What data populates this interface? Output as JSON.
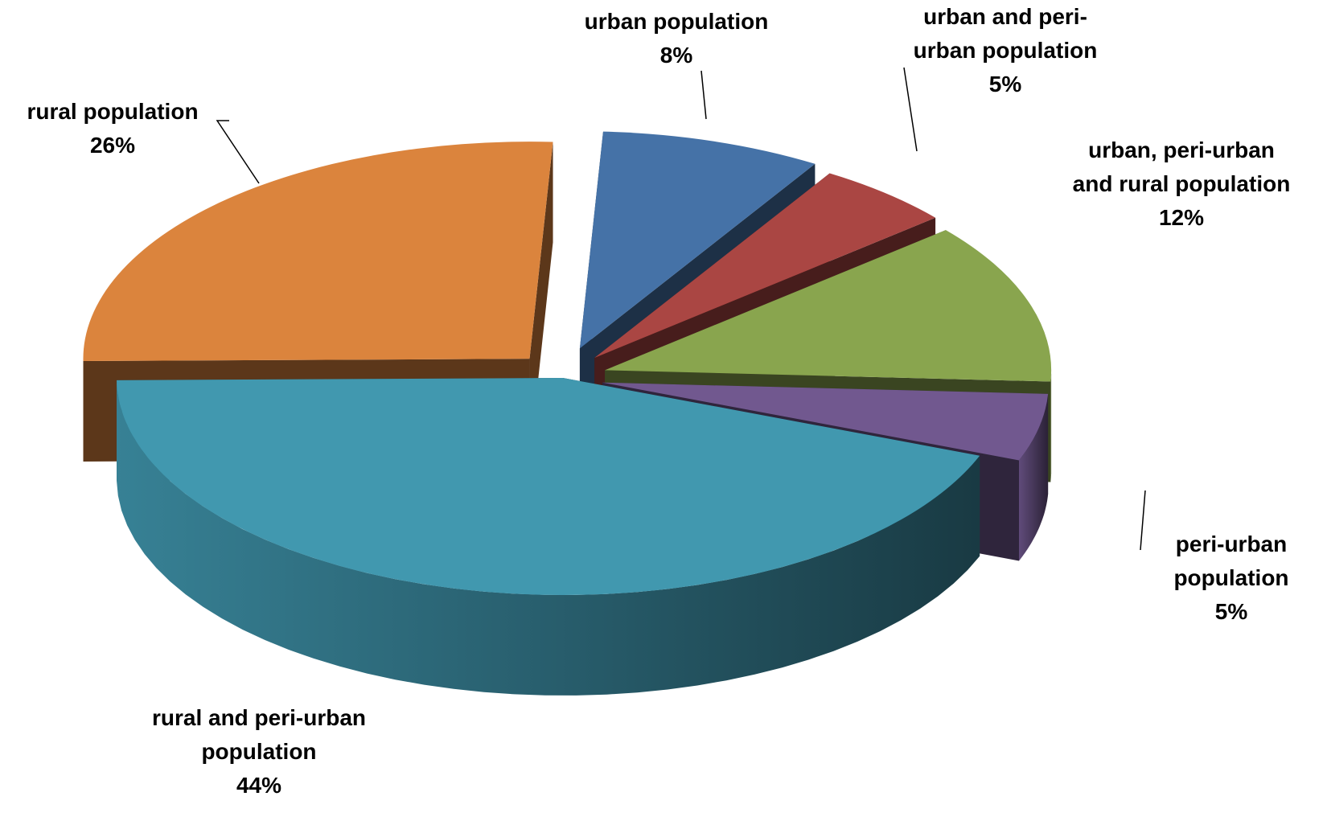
{
  "chart_data": {
    "type": "pie",
    "style": "3d-exploded",
    "slices": [
      {
        "label": "urban population",
        "value": 8,
        "value_label": "8%",
        "color": "#4572A7"
      },
      {
        "label": "urban and peri-urban population",
        "value": 5,
        "value_label": "5%",
        "color": "#AA4643"
      },
      {
        "label": "urban, peri-urban and rural population",
        "value": 12,
        "value_label": "12%",
        "color": "#89A54E"
      },
      {
        "label": "peri-urban population",
        "value": 5,
        "value_label": "5%",
        "color": "#71588F"
      },
      {
        "label": "rural and peri-urban population",
        "value": 44,
        "value_label": "44%",
        "color": "#4198AF"
      },
      {
        "label": "rural population",
        "value": 26,
        "value_label": "26%",
        "color": "#DB843D"
      }
    ],
    "label_lines": {
      "urban population": [
        "urban population"
      ],
      "urban and peri-urban population": [
        "urban and peri-",
        "urban population"
      ],
      "urban, peri-urban and rural population": [
        "urban, peri-urban",
        "and rural population"
      ],
      "peri-urban population": [
        "peri-urban",
        "population"
      ],
      "rural and peri-urban population": [
        "rural and peri-urban",
        "population"
      ],
      "rural population": [
        "rural population"
      ]
    },
    "legend": "none"
  }
}
